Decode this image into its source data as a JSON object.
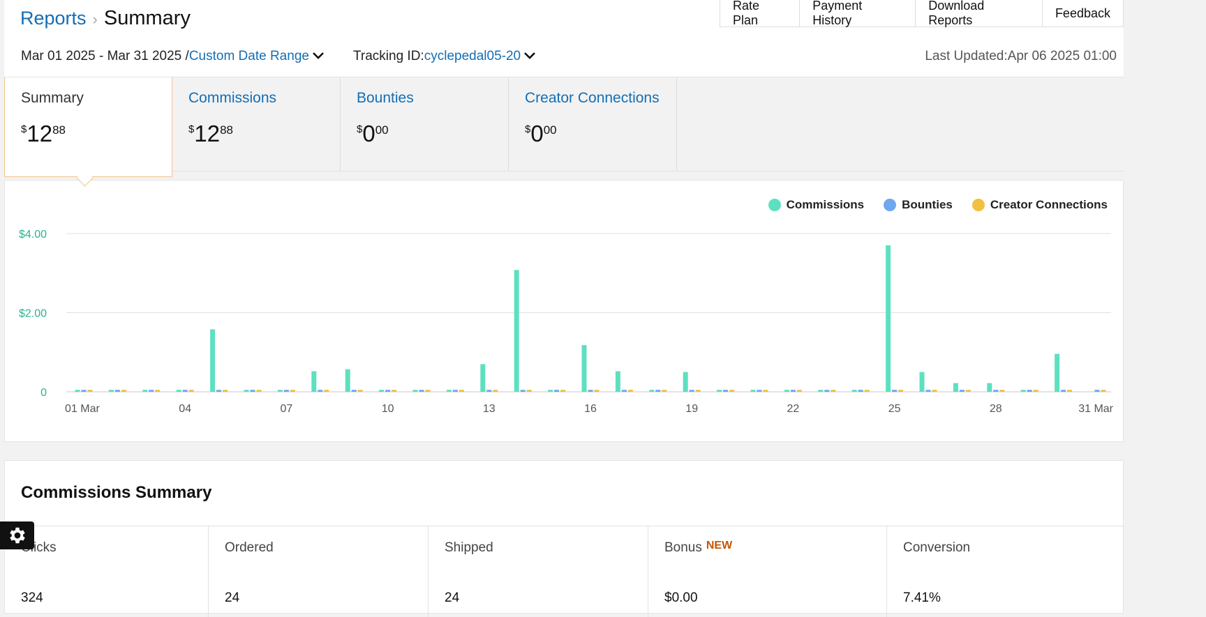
{
  "breadcrumb": {
    "parent": "Reports",
    "separator": "›",
    "current": "Summary"
  },
  "top_nav": [
    "Rate Plan",
    "Payment History",
    "Download Reports",
    "Feedback"
  ],
  "filters": {
    "date_range": "Mar 01 2025 - Mar 31 2025 /",
    "date_range_type": "Custom Date Range",
    "tracking_label": "Tracking ID:",
    "tracking_id": "cyclepedal05-20",
    "last_updated": "Last Updated:Apr 06 2025 01:00"
  },
  "tabs": [
    {
      "label": "Summary",
      "currency": "$",
      "whole": "12",
      "cents": "88",
      "active": true
    },
    {
      "label": "Commissions",
      "currency": "$",
      "whole": "12",
      "cents": "88",
      "active": false
    },
    {
      "label": "Bounties",
      "currency": "$",
      "whole": "0",
      "cents": "00",
      "active": false
    },
    {
      "label": "Creator Connections",
      "currency": "$",
      "whole": "0",
      "cents": "00",
      "active": false
    }
  ],
  "legend": [
    {
      "name": "Commissions",
      "color": "#5ee0c0"
    },
    {
      "name": "Bounties",
      "color": "#6fa8f0"
    },
    {
      "name": "Creator Connections",
      "color": "#f0c040"
    }
  ],
  "chart_data": {
    "type": "bar",
    "categories": [
      "01 Mar",
      "02",
      "03",
      "04",
      "05",
      "06",
      "07",
      "08",
      "09",
      "10",
      "11",
      "12",
      "13",
      "14",
      "15",
      "16",
      "17",
      "18",
      "19",
      "20",
      "21",
      "22",
      "23",
      "24",
      "25",
      "26",
      "27",
      "28",
      "29",
      "30",
      "31 Mar"
    ],
    "x_tick_labels": [
      "01 Mar",
      "04",
      "07",
      "10",
      "13",
      "16",
      "19",
      "22",
      "25",
      "28",
      "31 Mar"
    ],
    "y_tick_labels": [
      "0",
      "$2.00",
      "$4.00"
    ],
    "ylim": [
      0,
      4
    ],
    "grid": true,
    "legend_position": "top-right",
    "series": [
      {
        "name": "Commissions",
        "values": [
          0.05,
          0.05,
          0.05,
          0.05,
          1.58,
          0.05,
          0.05,
          0.52,
          0.57,
          0.05,
          0.05,
          0.05,
          0.7,
          3.08,
          0.05,
          1.18,
          0.52,
          0.05,
          0.5,
          0.05,
          0.05,
          0.05,
          0.05,
          0.05,
          3.7,
          0.5,
          0.22,
          0.22,
          0.05,
          0.96,
          0
        ]
      },
      {
        "name": "Bounties",
        "values": [
          0.05,
          0.05,
          0.05,
          0.05,
          0.05,
          0.05,
          0.05,
          0.05,
          0.05,
          0.05,
          0.05,
          0.05,
          0.05,
          0.05,
          0.05,
          0.05,
          0.05,
          0.05,
          0.05,
          0.05,
          0.05,
          0.05,
          0.05,
          0.05,
          0.05,
          0.05,
          0.05,
          0.05,
          0.05,
          0.05,
          0.05
        ]
      },
      {
        "name": "Creator Connections",
        "values": [
          0.05,
          0.05,
          0.05,
          0.05,
          0.05,
          0.05,
          0.05,
          0.05,
          0.05,
          0.05,
          0.05,
          0.05,
          0.05,
          0.05,
          0.05,
          0.05,
          0.05,
          0.05,
          0.05,
          0.05,
          0.05,
          0.05,
          0.05,
          0.05,
          0.05,
          0.05,
          0.05,
          0.05,
          0.05,
          0.05,
          0.05
        ]
      }
    ]
  },
  "summary": {
    "title": "Commissions Summary",
    "metrics": [
      {
        "label": "Clicks",
        "value": "324",
        "badge": ""
      },
      {
        "label": "Ordered",
        "value": "24",
        "badge": ""
      },
      {
        "label": "Shipped",
        "value": "24",
        "badge": ""
      },
      {
        "label": "Bonus",
        "value": "$0.00",
        "badge": "NEW"
      },
      {
        "label": "Conversion",
        "value": "7.41%",
        "badge": ""
      }
    ]
  },
  "colors": {
    "accent_link": "#146eb4",
    "active_tab_border": "#f0c38a",
    "axis_label": "#2bb38f",
    "new_badge": "#c45500"
  }
}
